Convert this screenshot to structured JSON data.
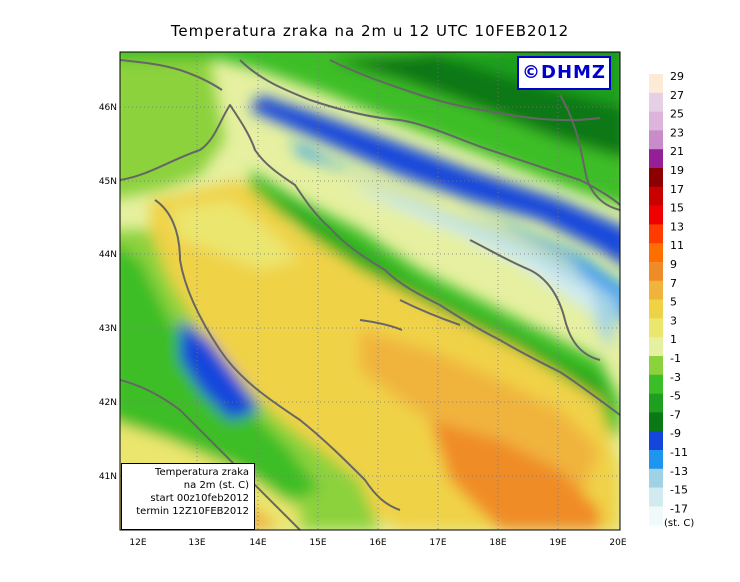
{
  "title": "Temperatura zraka na 2m u 12 UTC 10FEB2012",
  "logo": "©DHMZ",
  "info_box": {
    "line1": "Temperatura zraka",
    "line2": "na 2m (st. C)",
    "line3": "start 00z10feb2012",
    "line4": "termin 12Z10FEB2012"
  },
  "axes": {
    "x_ticks": [
      "12E",
      "13E",
      "14E",
      "15E",
      "16E",
      "17E",
      "18E",
      "19E",
      "20E"
    ],
    "y_ticks": [
      "41N",
      "42N",
      "43N",
      "44N",
      "45N",
      "46N"
    ]
  },
  "legend": {
    "unit": "(st. C)",
    "labels": [
      "29",
      "27",
      "25",
      "23",
      "21",
      "19",
      "17",
      "15",
      "13",
      "11",
      "9",
      "7",
      "5",
      "3",
      "1",
      "-1",
      "-3",
      "-5",
      "-7",
      "-9",
      "-11",
      "-13",
      "-15",
      "-17"
    ],
    "colors": [
      "#fdebd8",
      "#e6d0e6",
      "#dcb4dc",
      "#c88cc8",
      "#961e96",
      "#8c0000",
      "#c80000",
      "#f00000",
      "#ff3c00",
      "#ff6e00",
      "#f08c28",
      "#f0b43c",
      "#f0d246",
      "#ebe66e",
      "#e6f0a0",
      "#8cd23c",
      "#3cbe28",
      "#1ea01e",
      "#0a7814",
      "#1446dc",
      "#1e96f0",
      "#a0d2e6",
      "#d2ebf0",
      "#f0fafa"
    ]
  }
}
